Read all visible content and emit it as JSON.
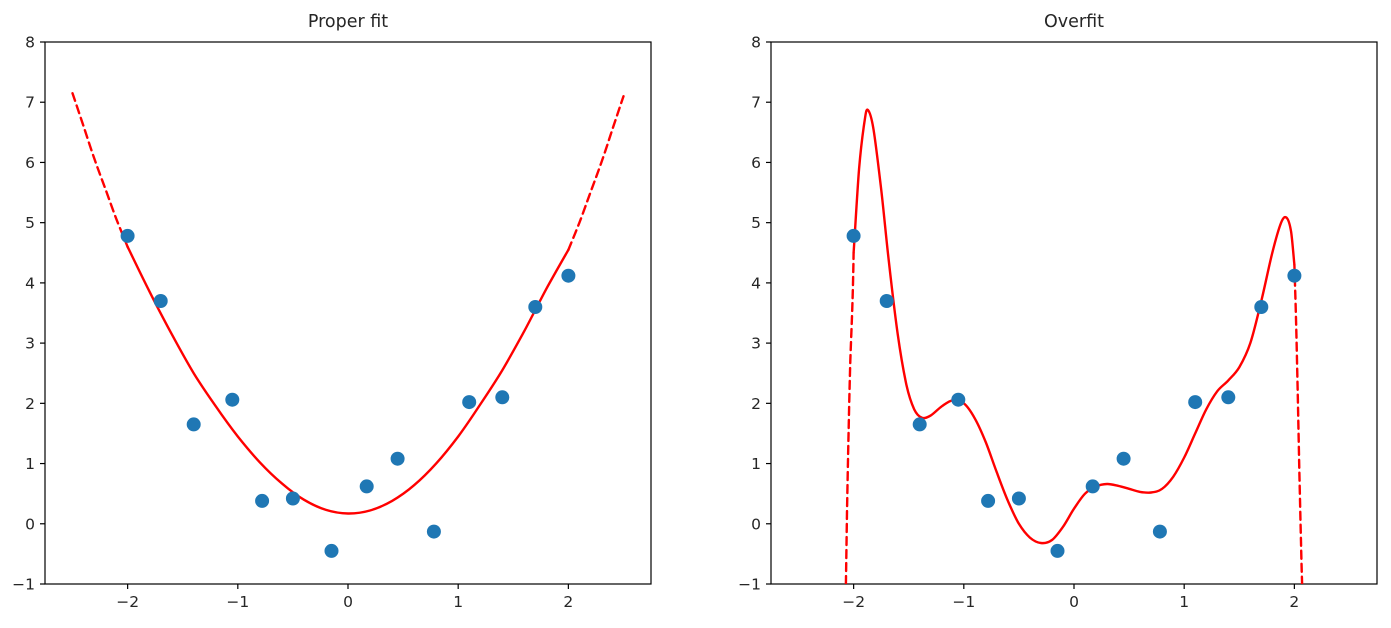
{
  "figure": {
    "background": "#ffffff"
  },
  "colors": {
    "scatter": "#1f77b4",
    "curve": "#ff0000",
    "axis": "#000000",
    "text": "#262626"
  },
  "chart_data": [
    {
      "type": "scatter",
      "title": "Proper fit",
      "xlabel": "",
      "ylabel": "",
      "xlim": [
        -2.75,
        2.75
      ],
      "ylim": [
        -1,
        8
      ],
      "xticks": [
        -2,
        -1,
        0,
        1,
        2
      ],
      "yticks": [
        -1,
        0,
        1,
        2,
        3,
        4,
        5,
        6,
        7,
        8
      ],
      "grid": false,
      "legend": "none",
      "points": [
        [
          -2.0,
          4.78
        ],
        [
          -1.7,
          3.7
        ],
        [
          -1.4,
          1.65
        ],
        [
          -1.05,
          2.06
        ],
        [
          -0.78,
          0.38
        ],
        [
          -0.5,
          0.42
        ],
        [
          -0.15,
          -0.45
        ],
        [
          0.17,
          0.62
        ],
        [
          0.45,
          1.08
        ],
        [
          0.78,
          -0.13
        ],
        [
          1.1,
          2.02
        ],
        [
          1.4,
          2.1
        ],
        [
          1.7,
          3.6
        ],
        [
          2.0,
          4.12
        ]
      ],
      "fit_curve": {
        "description": "quadratic fit, dashed extrapolation beyond data range",
        "dashed_left": [
          [
            -2.5,
            7.15
          ],
          [
            -2.4,
            6.6
          ],
          [
            -2.3,
            6.05
          ],
          [
            -2.2,
            5.55
          ],
          [
            -2.1,
            5.05
          ],
          [
            -2.0,
            4.6
          ]
        ],
        "solid": [
          [
            -2.0,
            4.6
          ],
          [
            -1.8,
            3.85
          ],
          [
            -1.6,
            3.15
          ],
          [
            -1.4,
            2.5
          ],
          [
            -1.2,
            1.95
          ],
          [
            -1.0,
            1.45
          ],
          [
            -0.8,
            1.02
          ],
          [
            -0.6,
            0.67
          ],
          [
            -0.4,
            0.4
          ],
          [
            -0.2,
            0.23
          ],
          [
            0.0,
            0.17
          ],
          [
            0.2,
            0.22
          ],
          [
            0.4,
            0.38
          ],
          [
            0.6,
            0.64
          ],
          [
            0.8,
            1.0
          ],
          [
            1.0,
            1.45
          ],
          [
            1.2,
            1.98
          ],
          [
            1.4,
            2.55
          ],
          [
            1.6,
            3.2
          ],
          [
            1.8,
            3.9
          ],
          [
            2.0,
            4.55
          ]
        ],
        "dashed_right": [
          [
            2.0,
            4.55
          ],
          [
            2.1,
            5.0
          ],
          [
            2.2,
            5.5
          ],
          [
            2.3,
            6.0
          ],
          [
            2.4,
            6.55
          ],
          [
            2.5,
            7.1
          ]
        ]
      }
    },
    {
      "type": "scatter",
      "title": "Overfit",
      "xlabel": "",
      "ylabel": "",
      "xlim": [
        -2.75,
        2.75
      ],
      "ylim": [
        -1,
        8
      ],
      "xticks": [
        -2,
        -1,
        0,
        1,
        2
      ],
      "yticks": [
        -1,
        0,
        1,
        2,
        3,
        4,
        5,
        6,
        7,
        8
      ],
      "grid": false,
      "legend": "none",
      "points": [
        [
          -2.0,
          4.78
        ],
        [
          -1.7,
          3.7
        ],
        [
          -1.4,
          1.65
        ],
        [
          -1.05,
          2.06
        ],
        [
          -0.78,
          0.38
        ],
        [
          -0.5,
          0.42
        ],
        [
          -0.15,
          -0.45
        ],
        [
          0.17,
          0.62
        ],
        [
          0.45,
          1.08
        ],
        [
          0.78,
          -0.13
        ],
        [
          1.1,
          2.02
        ],
        [
          1.4,
          2.1
        ],
        [
          1.7,
          3.6
        ],
        [
          2.0,
          4.12
        ]
      ],
      "fit_curve": {
        "description": "high-degree polynomial fit, dashed extrapolation plunges off-scale beyond data range",
        "dashed_left": [
          [
            -2.07,
            -1.0
          ],
          [
            -2.06,
            0.2
          ],
          [
            -2.045,
            1.6
          ],
          [
            -2.03,
            2.7
          ],
          [
            -2.01,
            3.7
          ],
          [
            -2.0,
            4.5
          ]
        ],
        "solid": [
          [
            -2.0,
            4.5
          ],
          [
            -1.95,
            5.9
          ],
          [
            -1.9,
            6.7
          ],
          [
            -1.87,
            6.87
          ],
          [
            -1.82,
            6.55
          ],
          [
            -1.75,
            5.55
          ],
          [
            -1.68,
            4.35
          ],
          [
            -1.6,
            3.15
          ],
          [
            -1.52,
            2.3
          ],
          [
            -1.45,
            1.9
          ],
          [
            -1.38,
            1.76
          ],
          [
            -1.3,
            1.8
          ],
          [
            -1.2,
            1.95
          ],
          [
            -1.1,
            2.05
          ],
          [
            -1.0,
            2.0
          ],
          [
            -0.9,
            1.75
          ],
          [
            -0.8,
            1.35
          ],
          [
            -0.7,
            0.85
          ],
          [
            -0.6,
            0.38
          ],
          [
            -0.5,
            0.0
          ],
          [
            -0.4,
            -0.23
          ],
          [
            -0.3,
            -0.32
          ],
          [
            -0.2,
            -0.27
          ],
          [
            -0.1,
            -0.05
          ],
          [
            0.0,
            0.25
          ],
          [
            0.1,
            0.5
          ],
          [
            0.2,
            0.62
          ],
          [
            0.3,
            0.66
          ],
          [
            0.4,
            0.63
          ],
          [
            0.5,
            0.58
          ],
          [
            0.6,
            0.53
          ],
          [
            0.7,
            0.52
          ],
          [
            0.8,
            0.58
          ],
          [
            0.9,
            0.78
          ],
          [
            1.0,
            1.1
          ],
          [
            1.1,
            1.5
          ],
          [
            1.2,
            1.9
          ],
          [
            1.3,
            2.2
          ],
          [
            1.4,
            2.38
          ],
          [
            1.5,
            2.6
          ],
          [
            1.6,
            3.0
          ],
          [
            1.7,
            3.7
          ],
          [
            1.8,
            4.5
          ],
          [
            1.88,
            5.0
          ],
          [
            1.93,
            5.08
          ],
          [
            1.97,
            4.85
          ],
          [
            2.0,
            4.3
          ]
        ],
        "dashed_right": [
          [
            2.0,
            4.3
          ],
          [
            2.015,
            3.4
          ],
          [
            2.03,
            2.2
          ],
          [
            2.045,
            0.9
          ],
          [
            2.06,
            -0.3
          ],
          [
            2.07,
            -1.0
          ]
        ]
      }
    }
  ]
}
